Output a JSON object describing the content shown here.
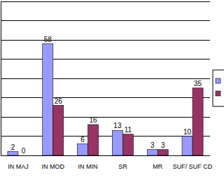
{
  "chart_data": {
    "type": "bar",
    "categories": [
      "IN MAJ",
      "IN MOD",
      "IN MIN",
      "SR",
      "MR",
      "SUF/ SUF CD"
    ],
    "series": [
      {
        "color": "#9999ff",
        "values": [
          2,
          58,
          6,
          13,
          3,
          10
        ]
      },
      {
        "color": "#993366",
        "values": [
          0,
          26,
          16,
          11,
          3,
          35
        ]
      }
    ],
    "ylim": [
      0,
      80
    ],
    "yticks": [
      0,
      10,
      20,
      30,
      40,
      50,
      60,
      70,
      80
    ],
    "grid": true,
    "data_labels": true,
    "tick_labels": "x",
    "legend": "right"
  }
}
